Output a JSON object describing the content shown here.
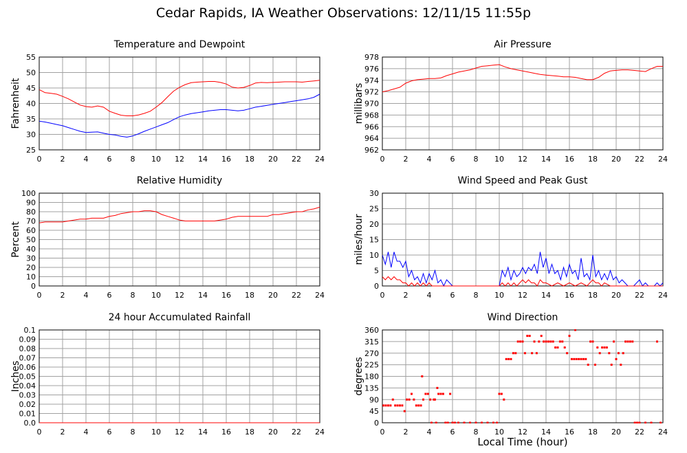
{
  "page": {
    "title": "Cedar Rapids, IA Weather Observations: 12/11/15 11:55p",
    "xlabel": "Local Time (hour)"
  },
  "colors": {
    "primary": "#ff0000",
    "secondary": "#0000ff",
    "grid": "#a0a0a0"
  },
  "chart_data": [
    {
      "id": "temperature",
      "type": "line",
      "title": "Temperature and Dewpoint",
      "xlabel": "",
      "ylabel": "Fahrenheit",
      "xlim": [
        0,
        24
      ],
      "ylim": [
        25,
        55
      ],
      "xticks": [
        0,
        2,
        4,
        6,
        8,
        10,
        12,
        14,
        16,
        18,
        20,
        22,
        24
      ],
      "yticks": [
        25,
        30,
        35,
        40,
        45,
        50,
        55
      ],
      "grid": true,
      "series": [
        {
          "color": "#ff0000",
          "x": [
            0,
            0.5,
            1,
            1.5,
            2,
            2.5,
            3,
            3.5,
            4,
            4.5,
            5,
            5.5,
            6,
            6.5,
            7,
            7.5,
            8,
            8.5,
            9,
            9.5,
            10,
            10.5,
            11,
            11.5,
            12,
            12.5,
            13,
            13.5,
            14,
            14.5,
            15,
            15.5,
            16,
            16.5,
            17,
            17.5,
            18,
            18.5,
            19,
            19.5,
            20,
            20.5,
            21,
            21.5,
            22,
            22.5,
            23,
            23.5,
            24
          ],
          "y": [
            44.5,
            43.5,
            43.3,
            43,
            42.3,
            41.5,
            40.5,
            39.5,
            39,
            38.8,
            39.2,
            38.8,
            37.5,
            36.8,
            36.2,
            36,
            36,
            36.3,
            36.8,
            37.5,
            38.8,
            40.3,
            42.2,
            44,
            45.2,
            46.1,
            46.7,
            46.9,
            47,
            47.1,
            47.1,
            46.8,
            46.3,
            45.3,
            45,
            45.2,
            45.8,
            46.6,
            46.8,
            46.7,
            46.8,
            46.9,
            47,
            47,
            47,
            46.9,
            47.1,
            47.3,
            47.5
          ]
        },
        {
          "color": "#0000ff",
          "x": [
            0,
            0.5,
            1,
            1.5,
            2,
            2.5,
            3,
            3.5,
            4,
            4.5,
            5,
            5.5,
            6,
            6.5,
            7,
            7.5,
            8,
            8.5,
            9,
            9.5,
            10,
            10.5,
            11,
            11.5,
            12,
            12.5,
            13,
            13.5,
            14,
            14.5,
            15,
            15.5,
            16,
            16.5,
            17,
            17.5,
            18,
            18.5,
            19,
            19.5,
            20,
            20.5,
            21,
            21.5,
            22,
            22.5,
            23,
            23.5,
            24
          ],
          "y": [
            34.3,
            34,
            33.6,
            33.2,
            32.8,
            32.2,
            31.6,
            31,
            30.6,
            30.7,
            30.8,
            30.4,
            30,
            29.8,
            29.4,
            29.1,
            29.5,
            30.2,
            31,
            31.7,
            32.4,
            33.1,
            33.8,
            34.8,
            35.7,
            36.3,
            36.7,
            37,
            37.3,
            37.6,
            37.8,
            38,
            38,
            37.8,
            37.6,
            37.8,
            38.3,
            38.8,
            39.1,
            39.4,
            39.7,
            40,
            40.3,
            40.6,
            40.9,
            41.2,
            41.5,
            42,
            43
          ]
        }
      ]
    },
    {
      "id": "pressure",
      "type": "line",
      "title": "Air Pressure",
      "xlabel": "",
      "ylabel": "millibars",
      "xlim": [
        0,
        24
      ],
      "ylim": [
        962,
        978
      ],
      "xticks": [
        0,
        2,
        4,
        6,
        8,
        10,
        12,
        14,
        16,
        18,
        20,
        22,
        24
      ],
      "yticks": [
        962,
        964,
        966,
        968,
        970,
        972,
        974,
        976,
        978
      ],
      "grid": true,
      "series": [
        {
          "color": "#ff0000",
          "x": [
            0,
            0.5,
            1,
            1.5,
            2,
            2.5,
            3,
            3.5,
            4,
            4.5,
            5,
            5.5,
            6,
            6.5,
            7,
            7.5,
            8,
            8.5,
            9,
            9.5,
            10,
            10.5,
            11,
            11.5,
            12,
            12.5,
            13,
            13.5,
            14,
            14.5,
            15,
            15.5,
            16,
            16.5,
            17,
            17.5,
            18,
            18.5,
            19,
            19.5,
            20,
            20.5,
            21,
            21.5,
            22,
            22.5,
            23,
            23.5,
            24
          ],
          "y": [
            972,
            972.2,
            972.5,
            972.8,
            973.5,
            973.9,
            974.1,
            974.2,
            974.3,
            974.3,
            974.4,
            974.8,
            975.1,
            975.4,
            975.6,
            975.8,
            976.1,
            976.4,
            976.5,
            976.6,
            976.7,
            976.3,
            976,
            975.8,
            975.6,
            975.4,
            975.2,
            975,
            974.9,
            974.8,
            974.7,
            974.6,
            974.6,
            974.5,
            974.3,
            974.1,
            974.1,
            974.5,
            975.2,
            975.6,
            975.7,
            975.8,
            975.8,
            975.7,
            975.6,
            975.5,
            976,
            976.4,
            976.4
          ]
        }
      ]
    },
    {
      "id": "humidity",
      "type": "line",
      "title": "Relative Humidity",
      "xlabel": "",
      "ylabel": "Percent",
      "xlim": [
        0,
        24
      ],
      "ylim": [
        0,
        100
      ],
      "xticks": [
        0,
        2,
        4,
        6,
        8,
        10,
        12,
        14,
        16,
        18,
        20,
        22,
        24
      ],
      "yticks": [
        0,
        10,
        20,
        30,
        40,
        50,
        60,
        70,
        80,
        90,
        100
      ],
      "grid": true,
      "series": [
        {
          "color": "#ff0000",
          "x": [
            0,
            0.5,
            1,
            1.5,
            2,
            2.5,
            3,
            3.5,
            4,
            4.5,
            5,
            5.5,
            6,
            6.5,
            7,
            7.5,
            8,
            8.5,
            9,
            9.5,
            10,
            10.5,
            11,
            11.5,
            12,
            12.5,
            13,
            13.5,
            14,
            14.5,
            15,
            15.5,
            16,
            16.5,
            17,
            17.5,
            18,
            18.5,
            19,
            19.5,
            20,
            20.5,
            21,
            21.5,
            22,
            22.5,
            23,
            23.5,
            24
          ],
          "y": [
            68,
            69,
            69,
            69,
            69,
            70,
            71,
            72,
            72,
            73,
            73,
            73,
            75,
            76,
            78,
            79,
            80,
            80,
            81,
            81,
            80,
            77,
            75,
            73,
            71,
            70,
            70,
            70,
            70,
            70,
            70,
            71,
            72,
            74,
            75,
            75,
            75,
            75,
            75,
            75,
            77,
            77,
            78,
            79,
            80,
            80,
            82,
            83,
            85
          ]
        }
      ]
    },
    {
      "id": "wind",
      "type": "line",
      "title": "Wind Speed and Peak Gust",
      "xlabel": "",
      "ylabel": "miles/hour",
      "xlim": [
        0,
        24
      ],
      "ylim": [
        0,
        30
      ],
      "xticks": [
        0,
        2,
        4,
        6,
        8,
        10,
        12,
        14,
        16,
        18,
        20,
        22,
        24
      ],
      "yticks": [
        0,
        5,
        10,
        15,
        20,
        25,
        30
      ],
      "grid": true,
      "series": [
        {
          "color": "#0000ff",
          "x": [
            0,
            0.25,
            0.5,
            0.75,
            1,
            1.25,
            1.5,
            1.75,
            2,
            2.25,
            2.5,
            2.75,
            3,
            3.25,
            3.5,
            3.75,
            4,
            4.25,
            4.5,
            4.75,
            5,
            5.25,
            5.5,
            5.75,
            6,
            6.5,
            7,
            7.5,
            8,
            8.5,
            9,
            9.5,
            10,
            10.25,
            10.5,
            10.75,
            11,
            11.25,
            11.5,
            11.75,
            12,
            12.25,
            12.5,
            12.75,
            13,
            13.25,
            13.5,
            13.75,
            14,
            14.25,
            14.5,
            14.75,
            15,
            15.25,
            15.5,
            15.75,
            16,
            16.25,
            16.5,
            16.75,
            17,
            17.25,
            17.5,
            17.75,
            18,
            18.25,
            18.5,
            18.75,
            19,
            19.25,
            19.5,
            19.75,
            20,
            20.25,
            20.5,
            20.75,
            21,
            21.5,
            22,
            22.25,
            22.5,
            22.75,
            23,
            23.25,
            23.5,
            23.75,
            24
          ],
          "y": [
            10,
            7,
            11,
            6,
            11,
            8,
            8,
            6,
            8,
            3,
            5,
            2,
            3,
            1,
            4,
            1,
            4,
            2,
            5,
            1,
            2,
            0,
            2,
            1,
            0,
            0,
            0,
            0,
            0,
            0,
            0,
            0,
            0,
            5,
            3,
            6,
            2,
            5,
            3,
            4,
            6,
            4,
            6,
            5,
            7,
            4,
            11,
            6,
            9,
            4,
            7,
            4,
            5,
            2,
            6,
            3,
            7,
            4,
            5,
            2,
            9,
            3,
            4,
            2,
            10,
            3,
            5,
            2,
            4,
            2,
            5,
            2,
            3,
            1,
            2,
            1,
            0,
            0,
            2,
            0,
            1,
            0,
            0,
            0,
            1,
            0,
            1
          ]
        },
        {
          "color": "#ff0000",
          "x": [
            0,
            0.25,
            0.5,
            0.75,
            1,
            1.25,
            1.5,
            1.75,
            2,
            2.25,
            2.5,
            2.75,
            3,
            3.25,
            3.5,
            3.75,
            4,
            4.25,
            4.5,
            5,
            6,
            7,
            8,
            9,
            10,
            10.25,
            10.5,
            10.75,
            11,
            11.25,
            11.5,
            11.75,
            12,
            12.25,
            12.5,
            12.75,
            13,
            13.25,
            13.5,
            13.75,
            14,
            14.5,
            15,
            15.5,
            16,
            16.5,
            17,
            17.5,
            18,
            18.25,
            18.5,
            18.75,
            19,
            19.5,
            20,
            21,
            22,
            23,
            24
          ],
          "y": [
            3,
            2,
            3,
            2,
            3,
            2,
            2,
            1,
            1,
            0,
            1,
            0,
            1,
            0,
            1,
            0,
            1,
            0,
            0,
            0,
            0,
            0,
            0,
            0,
            0,
            1,
            0,
            1,
            0,
            1,
            0,
            1,
            2,
            1,
            2,
            1,
            1,
            0,
            2,
            1,
            1,
            0,
            1,
            0,
            1,
            0,
            1,
            0,
            2,
            1,
            1,
            0,
            1,
            0,
            0,
            0,
            0,
            0,
            0
          ]
        }
      ]
    },
    {
      "id": "rainfall",
      "type": "line",
      "title": "24 hour Accumulated Rainfall",
      "xlabel": "",
      "ylabel": "Inches",
      "xlim": [
        0,
        24
      ],
      "ylim": [
        0,
        0.1
      ],
      "xticks": [
        0,
        2,
        4,
        6,
        8,
        10,
        12,
        14,
        16,
        18,
        20,
        22,
        24
      ],
      "yticks": [
        "0.0",
        "0.01",
        "0.02",
        "0.03",
        "0.04",
        "0.05",
        "0.06",
        "0.07",
        "0.08",
        "0.09",
        "0.1"
      ],
      "grid": true,
      "series": [
        {
          "color": "#ff0000",
          "x": [
            0,
            24
          ],
          "y": [
            0,
            0
          ]
        }
      ]
    },
    {
      "id": "direction",
      "type": "scatter",
      "title": "Wind Direction",
      "xlabel": "Local Time (hour)",
      "ylabel": "degrees",
      "xlim": [
        0,
        24
      ],
      "ylim": [
        0,
        360
      ],
      "xticks": [
        0,
        2,
        4,
        6,
        8,
        10,
        12,
        14,
        16,
        18,
        20,
        22,
        24
      ],
      "yticks": [
        0,
        45,
        90,
        135,
        180,
        225,
        270,
        315,
        360
      ],
      "grid": true,
      "series": [
        {
          "color": "#ff0000",
          "x": [
            0.1,
            0.3,
            0.5,
            0.7,
            0.9,
            1.1,
            1.3,
            1.5,
            1.7,
            1.9,
            2.1,
            2.3,
            2.5,
            2.7,
            2.9,
            3.1,
            3.3,
            3.4,
            3.5,
            3.7,
            3.9,
            4.1,
            4.2,
            4.4,
            4.5,
            4.6,
            4.7,
            4.8,
            5.0,
            5.2,
            5.4,
            5.6,
            5.8,
            6.0,
            6.2,
            6.5,
            7.0,
            7.5,
            8.0,
            8.5,
            9.0,
            9.5,
            9.8,
            10.0,
            10.2,
            10.4,
            10.6,
            10.8,
            11.0,
            11.2,
            11.4,
            11.6,
            11.8,
            12.0,
            12.2,
            12.4,
            12.6,
            12.8,
            13.0,
            13.2,
            13.4,
            13.6,
            13.8,
            14.0,
            14.2,
            14.4,
            14.6,
            14.8,
            15.0,
            15.2,
            15.4,
            15.6,
            15.8,
            16.0,
            16.2,
            16.4,
            16.5,
            16.6,
            16.8,
            17.0,
            17.2,
            17.4,
            17.6,
            17.8,
            18.0,
            18.2,
            18.4,
            18.6,
            18.8,
            19.0,
            19.2,
            19.4,
            19.6,
            19.8,
            20.0,
            20.2,
            20.4,
            20.6,
            20.8,
            21.0,
            21.2,
            21.4,
            21.6,
            21.8,
            22.0,
            22.5,
            23.0,
            23.5,
            23.8
          ],
          "y": [
            67,
            67,
            67,
            67,
            90,
            67,
            67,
            67,
            67,
            45,
            90,
            90,
            112,
            90,
            67,
            67,
            67,
            180,
            90,
            112,
            112,
            90,
            0,
            90,
            90,
            0,
            135,
            112,
            112,
            112,
            0,
            0,
            112,
            0,
            0,
            0,
            0,
            0,
            0,
            0,
            0,
            0,
            0,
            112,
            112,
            90,
            247,
            247,
            247,
            270,
            270,
            315,
            315,
            315,
            270,
            337,
            337,
            270,
            315,
            270,
            315,
            337,
            315,
            315,
            315,
            315,
            315,
            292,
            292,
            315,
            315,
            292,
            270,
            337,
            247,
            247,
            360,
            247,
            247,
            247,
            247,
            247,
            225,
            315,
            315,
            225,
            292,
            270,
            292,
            292,
            292,
            270,
            225,
            315,
            247,
            270,
            225,
            270,
            315,
            315,
            315,
            315,
            0,
            0,
            0,
            0,
            0,
            315,
            0
          ]
        }
      ]
    }
  ]
}
